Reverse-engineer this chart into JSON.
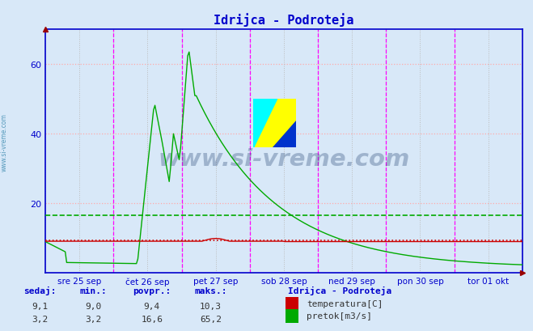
{
  "title": "Idrijca - Podroteja",
  "title_color": "#0000cc",
  "bg_color": "#d8e8f8",
  "axis_color": "#0000cc",
  "grid_h_color": "#ffaaaa",
  "grid_v_color": "#bbbbbb",
  "ylim": [
    0,
    70
  ],
  "yticks": [
    20,
    40,
    60
  ],
  "x_day_labels": [
    "sre 25 sep",
    "čet 26 sep",
    "pet 27 sep",
    "sob 28 sep",
    "ned 29 sep",
    "pon 30 sep",
    "tor 01 okt"
  ],
  "vline_color": "#ff00ff",
  "temp_color": "#cc0000",
  "flow_color": "#00aa00",
  "watermark": "www.si-vreme.com",
  "watermark_color": "#1a3a6a",
  "sidebar_text": "www.si-vreme.com",
  "sidebar_color": "#5599bb",
  "footer_labels": [
    "sedaj:",
    "min.:",
    "povpr.:",
    "maks.:"
  ],
  "footer_temp": [
    "9,1",
    "9,0",
    "9,4",
    "10,3"
  ],
  "footer_flow": [
    "3,2",
    "3,2",
    "16,6",
    "65,2"
  ],
  "legend_title": "Idrijca - Podroteja",
  "legend_temp": "temperatura[C]",
  "legend_flow": "pretok[m3/s]",
  "n_points": 336,
  "temp_mean": 9.4,
  "flow_mean": 16.6
}
